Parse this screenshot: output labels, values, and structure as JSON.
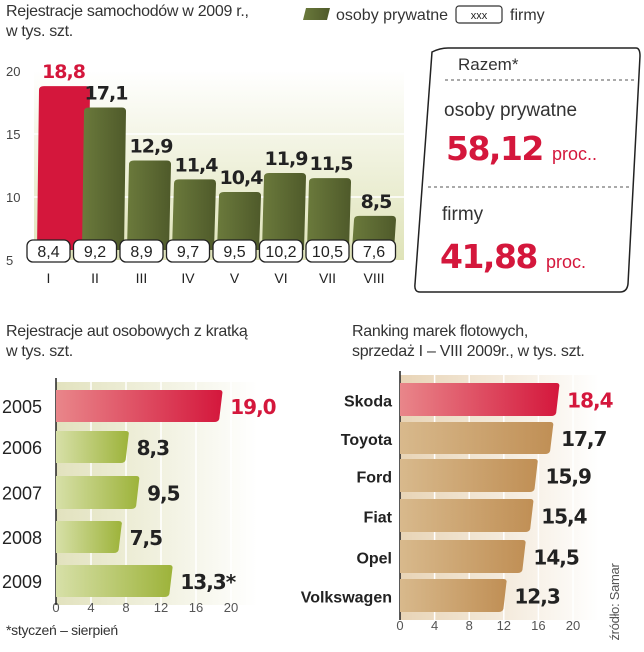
{
  "colors": {
    "olive": "#5e6b34",
    "red": "#d4173c",
    "lime": "#9db33a",
    "tan": "#c59a63",
    "highlight": "#d4173c",
    "text": "#222222"
  },
  "chart_data": [
    {
      "type": "bar",
      "title": "Rejestracje samochodów w 2009 r.,",
      "subtitle": "w tys. szt.",
      "legend": {
        "private_label": "osoby prywatne",
        "company_swatch": "xxx",
        "company_label": "firmy",
        "placement": "top-right"
      },
      "categories": [
        "I",
        "II",
        "III",
        "IV",
        "V",
        "VI",
        "VII",
        "VIII"
      ],
      "series": [
        {
          "name": "osoby prywatne",
          "values": [
            18.8,
            17.1,
            12.9,
            11.4,
            10.4,
            11.9,
            11.5,
            8.5
          ],
          "labels": [
            "18,8",
            "17,1",
            "12,9",
            "11,4",
            "10,4",
            "11,9",
            "11,5",
            "8,5"
          ]
        },
        {
          "name": "firmy",
          "values": [
            8.4,
            9.2,
            8.9,
            9.7,
            9.5,
            10.2,
            10.5,
            7.6
          ],
          "labels": [
            "8,4",
            "9,2",
            "8,9",
            "9,7",
            "9,5",
            "10,2",
            "10,5",
            "7,6"
          ]
        }
      ],
      "yticks": [
        "5",
        "10",
        "15",
        "20"
      ],
      "ylim": [
        5,
        20
      ],
      "grid": true
    },
    {
      "type": "bar",
      "orientation": "horizontal",
      "title": "Rejestracje aut osobowych z kratką",
      "subtitle": "w tys. szt.",
      "categories": [
        "2005",
        "2006",
        "2007",
        "2008",
        "2009"
      ],
      "values": [
        19.0,
        8.3,
        9.5,
        7.5,
        13.3
      ],
      "labels": [
        "19,0",
        "8,3",
        "9,5",
        "7,5",
        "13,3*"
      ],
      "xticks": [
        "0",
        "4",
        "8",
        "12",
        "16",
        "20"
      ],
      "xlim": [
        0,
        20
      ],
      "footnote": "*styczeń – sierpień",
      "grid": true
    },
    {
      "type": "bar",
      "orientation": "horizontal",
      "title": "Ranking marek flotowych,",
      "subtitle": "sprzedaż I – VIII 2009r., w tys. szt.",
      "categories": [
        "Skoda",
        "Toyota",
        "Ford",
        "Fiat",
        "Opel",
        "Volkswagen"
      ],
      "values": [
        18.4,
        17.7,
        15.9,
        15.4,
        14.5,
        12.3
      ],
      "labels": [
        "18,4",
        "17,7",
        "15,9",
        "15,4",
        "14,5",
        "12,3"
      ],
      "xticks": [
        "0",
        "4",
        "8",
        "12",
        "16",
        "20"
      ],
      "xlim": [
        0,
        20
      ],
      "grid": true
    }
  ],
  "summary": {
    "heading": "Razem*",
    "private_label": "osoby prywatne",
    "private_value": "58,12",
    "private_unit": "proc..",
    "company_label": "firmy",
    "company_value": "41,88",
    "company_unit": "proc."
  },
  "source": "źródło: Samar"
}
